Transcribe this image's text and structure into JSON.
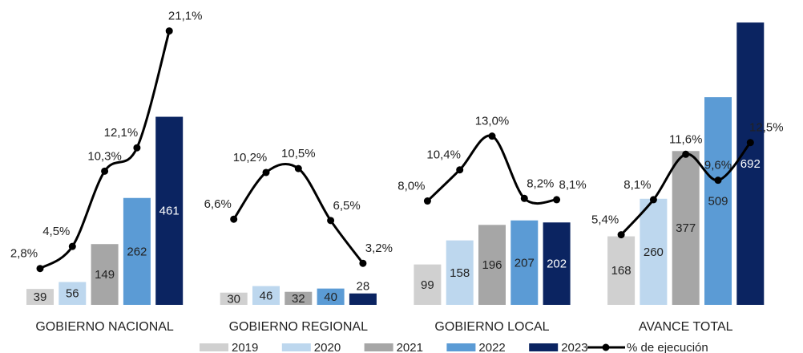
{
  "chart_data": {
    "type": "bar-line",
    "categories": [
      "GOBIERNO NACIONAL",
      "GOBIERNO REGIONAL",
      "GOBIERNO LOCAL",
      "AVANCE TOTAL"
    ],
    "series": [
      {
        "name": "2019",
        "color": "#d0d0d0",
        "values": [
          39,
          30,
          99,
          168
        ]
      },
      {
        "name": "2020",
        "color": "#bdd7ee",
        "values": [
          56,
          46,
          158,
          260
        ]
      },
      {
        "name": "2021",
        "color": "#a6a6a6",
        "values": [
          149,
          32,
          196,
          377
        ]
      },
      {
        "name": "2022",
        "color": "#5b9bd5",
        "values": [
          262,
          40,
          207,
          509
        ]
      },
      {
        "name": "2023",
        "color": "#0b2461",
        "values": [
          461,
          28,
          202,
          692
        ]
      }
    ],
    "line": {
      "name": "% de ejecución",
      "color": "#000000",
      "axis": "y2",
      "values": [
        [
          2.8,
          4.5,
          10.3,
          12.1,
          21.1
        ],
        [
          6.6,
          10.2,
          10.5,
          6.5,
          3.2
        ],
        [
          8.0,
          10.4,
          13.0,
          8.2,
          8.1
        ],
        [
          5.4,
          8.1,
          11.6,
          9.6,
          12.5
        ]
      ],
      "value_labels": [
        [
          "2,8%",
          "4,5%",
          "10,3%",
          "12,1%",
          "21,1%"
        ],
        [
          "6,6%",
          "10,2%",
          "10,5%",
          "6,5%",
          "3,2%"
        ],
        [
          "8,0%",
          "10,4%",
          "13,0%",
          "8,2%",
          "8,1%"
        ],
        [
          "5,4%",
          "8,1%",
          "11,6%",
          "9,6%",
          "12,5%"
        ]
      ]
    },
    "ylim": [
      0,
      700
    ],
    "y2lim": [
      0,
      22
    ],
    "grid": false
  }
}
